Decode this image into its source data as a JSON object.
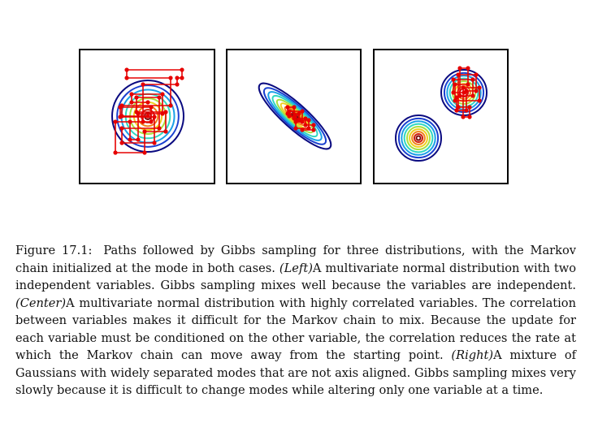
{
  "caption": {
    "label": "Figure 17.1:",
    "s1": "Paths followed by Gibbs sampling for three distributions, with the Markov chain initialized at the mode in both cases.",
    "left_tag": "(Left)",
    "s2": "A multivariate normal distribution with two independent variables. Gibbs sampling mixes well because the variables are independent.",
    "center_tag": "(Center)",
    "s3": "A multivariate normal distribution with highly correlated variables. The correlation between variables makes it difficult for the Markov chain to mix. Because the update for each variable must be conditioned on the other variable, the correlation reduces the rate at which the Markov chain can move away from the starting point.",
    "right_tag": "(Right)",
    "s4": "A mixture of Gaussians with widely separated modes that are not axis aligned. Gibbs sampling mixes very slowly because it is difficult to change modes while altering only one variable at a time."
  },
  "colors": {
    "contours": [
      "#0a0a80",
      "#1a40d0",
      "#1aa0e8",
      "#30d8c0",
      "#a8e040",
      "#f0d020",
      "#f08018",
      "#d02010",
      "#7a0a0a"
    ],
    "path": "#e60000",
    "frame": "#000000"
  }
}
